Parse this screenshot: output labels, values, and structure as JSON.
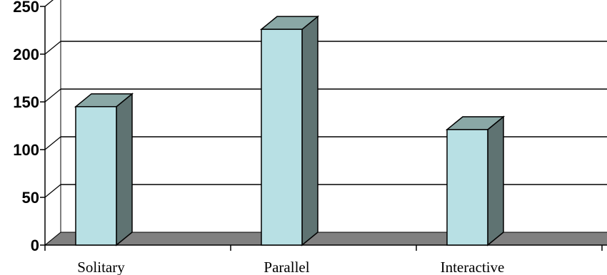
{
  "chart_data": {
    "type": "bar",
    "categories": [
      "Solitary",
      "Parallel",
      "Interactive"
    ],
    "values": [
      145,
      226,
      121
    ],
    "ylim": [
      0,
      250
    ],
    "yticks": [
      0,
      50,
      100,
      150,
      200,
      250
    ],
    "grid": true,
    "legend": false,
    "style": "3d-column",
    "colors": {
      "bar_front": "#b8e0e4",
      "bar_top": "#8aa8a6",
      "bar_side": "#5f7372",
      "floor": "#808080",
      "gridline": "#000000"
    }
  }
}
